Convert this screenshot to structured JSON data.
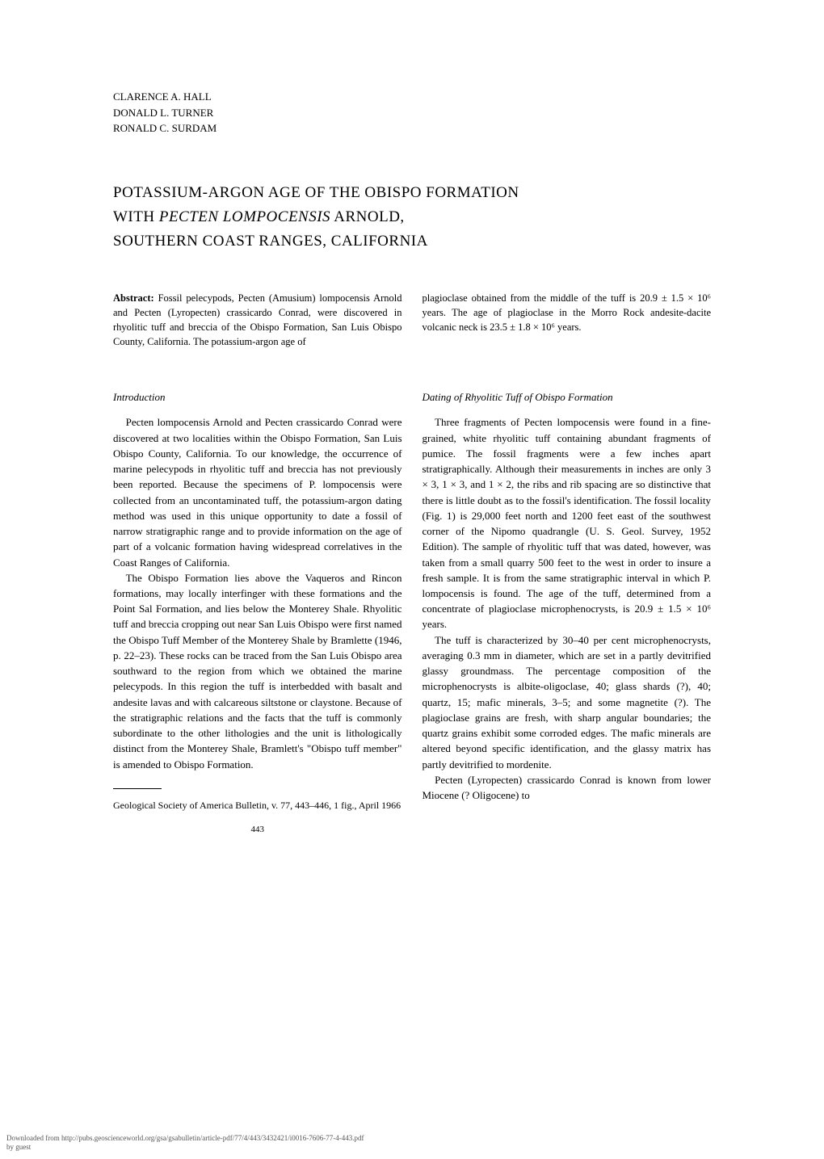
{
  "authors": [
    "CLARENCE A. HALL",
    "DONALD L. TURNER",
    "RONALD C. SURDAM"
  ],
  "title_line1": "POTASSIUM-ARGON AGE OF THE OBISPO FORMATION",
  "title_line2_pre": "WITH ",
  "title_line2_italic": "PECTEN LOMPOCENSIS",
  "title_line2_post": " ARNOLD,",
  "title_line3": "SOUTHERN COAST RANGES, CALIFORNIA",
  "abstract": {
    "label": "Abstract:",
    "left": " Fossil pelecypods, Pecten (Amusium) lompocensis Arnold and Pecten (Lyropecten) crassicardo Conrad, were discovered in rhyolitic tuff and breccia of the Obispo Formation, San Luis Obispo County, California. The potassium-argon age of",
    "right": "plagioclase obtained from the middle of the tuff is 20.9 ± 1.5 × 10⁶ years. The age of plagioclase in the Morro Rock andesite-dacite volcanic neck is 23.5 ± 1.8 × 10⁶ years."
  },
  "left_column": {
    "heading": "Introduction",
    "para1": "Pecten lompocensis Arnold and Pecten crassicardo Conrad were discovered at two localities within the Obispo Formation, San Luis Obispo County, California. To our knowledge, the occurrence of marine pelecypods in rhyolitic tuff and breccia has not previously been reported. Because the specimens of P. lompocensis were collected from an uncontaminated tuff, the potassium-argon dating method was used in this unique opportunity to date a fossil of narrow stratigraphic range and to provide information on the age of part of a volcanic formation having widespread correlatives in the Coast Ranges of California.",
    "para2": "The Obispo Formation lies above the Vaqueros and Rincon formations, may locally interfinger with these formations and the Point Sal Formation, and lies below the Monterey Shale. Rhyolitic tuff and breccia cropping out near San Luis Obispo were first named the Obispo Tuff Member of the Monterey Shale by Bramlette (1946, p. 22–23). These rocks can be traced from the San Luis Obispo area southward to the region from which we obtained the marine pelecypods. In this region the tuff is interbedded with basalt and andesite lavas and with calcareous siltstone or claystone. Because of the stratigraphic relations and the facts that the tuff is commonly subordinate to the other lithologies and the unit is lithologically distinct from the Monterey Shale, Bramlett's \"Obispo tuff member\" is amended to Obispo Formation."
  },
  "right_column": {
    "heading": "Dating of Rhyolitic Tuff of Obispo Formation",
    "para1": "Three fragments of Pecten lompocensis were found in a fine-grained, white rhyolitic tuff containing abundant fragments of pumice. The fossil fragments were a few inches apart stratigraphically. Although their measurements in inches are only 3 × 3, 1 × 3, and 1 × 2, the ribs and rib spacing are so distinctive that there is little doubt as to the fossil's identification. The fossil locality (Fig. 1) is 29,000 feet north and 1200 feet east of the southwest corner of the Nipomo quadrangle (U. S. Geol. Survey, 1952 Edition). The sample of rhyolitic tuff that was dated, however, was taken from a small quarry 500 feet to the west in order to insure a fresh sample. It is from the same stratigraphic interval in which P. lompocensis is found. The age of the tuff, determined from a concentrate of plagioclase microphenocrysts, is 20.9 ± 1.5 × 10⁶ years.",
    "para2": "The tuff is characterized by 30–40 per cent microphenocrysts, averaging 0.3 mm in diameter, which are set in a partly devitrified glassy groundmass. The percentage composition of the microphenocrysts is albite-oligoclase, 40; glass shards (?), 40; quartz, 15; mafic minerals, 3–5; and some magnetite (?). The plagioclase grains are fresh, with sharp angular boundaries; the quartz grains exhibit some corroded edges. The mafic minerals are altered beyond specific identification, and the glassy matrix has partly devitrified to mordenite.",
    "para3": "Pecten (Lyropecten) crassicardo Conrad is known from lower Miocene (? Oligocene) to"
  },
  "citation": "Geological Society of America Bulletin, v. 77, 443–446, 1 fig., April 1966",
  "page_number": "443",
  "download_line1": "Downloaded from http://pubs.geoscienceworld.org/gsa/gsabulletin/article-pdf/77/4/443/3432421/i0016-7606-77-4-443.pdf",
  "download_line2": "by guest"
}
